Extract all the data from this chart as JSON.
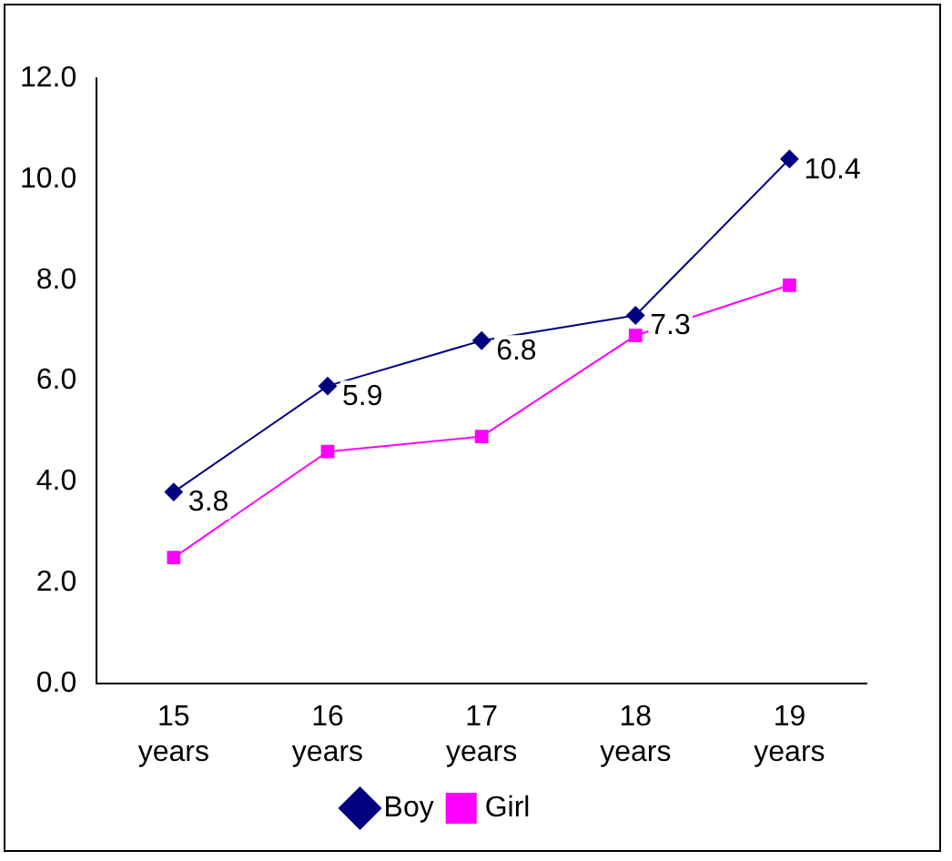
{
  "chart_data": {
    "type": "line",
    "categories": [
      "15 years",
      "16 years",
      "17 years",
      "18 years",
      "19 years"
    ],
    "series": [
      {
        "name": "Boy",
        "color": "#000080",
        "marker": "diamond",
        "values": [
          3.8,
          5.9,
          6.8,
          7.3,
          10.4
        ],
        "value_labels": [
          "3.8",
          "5.9",
          "6.8",
          "7.3",
          "10.4"
        ]
      },
      {
        "name": "Girl",
        "color": "#ff00ff",
        "marker": "square",
        "values": [
          2.5,
          4.6,
          4.9,
          6.9,
          7.9
        ]
      }
    ],
    "ylim": [
      0,
      12
    ],
    "yticks": [
      {
        "value": 0,
        "label": "0.0"
      },
      {
        "value": 2,
        "label": "2.0"
      },
      {
        "value": 4,
        "label": "4.0"
      },
      {
        "value": 6,
        "label": "6.0"
      },
      {
        "value": 8,
        "label": "8.0"
      },
      {
        "value": 10,
        "label": "10.0"
      },
      {
        "value": 12,
        "label": "12.0"
      }
    ],
    "grid": false,
    "legend": "bottom",
    "line_style": "solid"
  }
}
